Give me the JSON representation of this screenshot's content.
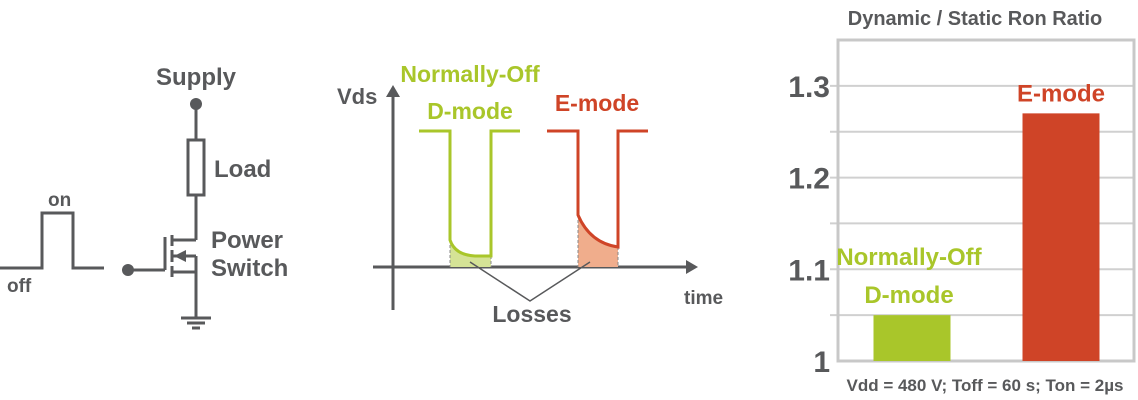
{
  "circuit": {
    "supply_label": "Supply",
    "load_label": "Load",
    "switch_label_line1": "Power",
    "switch_label_line2": "Switch",
    "pulse_on_label": "on",
    "pulse_off_label": "off"
  },
  "waveform": {
    "y_axis_label": "Vds",
    "x_axis_label": "time",
    "dmode_label_line1": "Normally-Off",
    "dmode_label_line2": "D-mode",
    "emode_label": "E-mode",
    "losses_label": "Losses"
  },
  "colors": {
    "dmode": "#a9c62a",
    "emode": "#cf4427",
    "dmode_fill": "#d5e396",
    "emode_fill": "#f0ad8c",
    "ink": "#58595b"
  },
  "chart_data": {
    "type": "bar",
    "title": "Dynamic / Static Ron Ratio",
    "xlabel": "Vdd = 480 V; Toff = 60 s; Ton = 2µs",
    "ylabel": "",
    "ylim": [
      1,
      1.35
    ],
    "yticks": [
      1,
      1.1,
      1.2,
      1.3
    ],
    "ytick_labels": [
      "1",
      "1.1",
      "1.2",
      "1.3"
    ],
    "grid": true,
    "categories": [
      "Normally-Off D-mode",
      "E-mode"
    ],
    "bar_labels": [
      [
        "Normally-Off",
        "D-mode"
      ],
      [
        "E-mode"
      ]
    ],
    "values": [
      1.05,
      1.27
    ],
    "colors": [
      "#a9c62a",
      "#cf4427"
    ]
  }
}
